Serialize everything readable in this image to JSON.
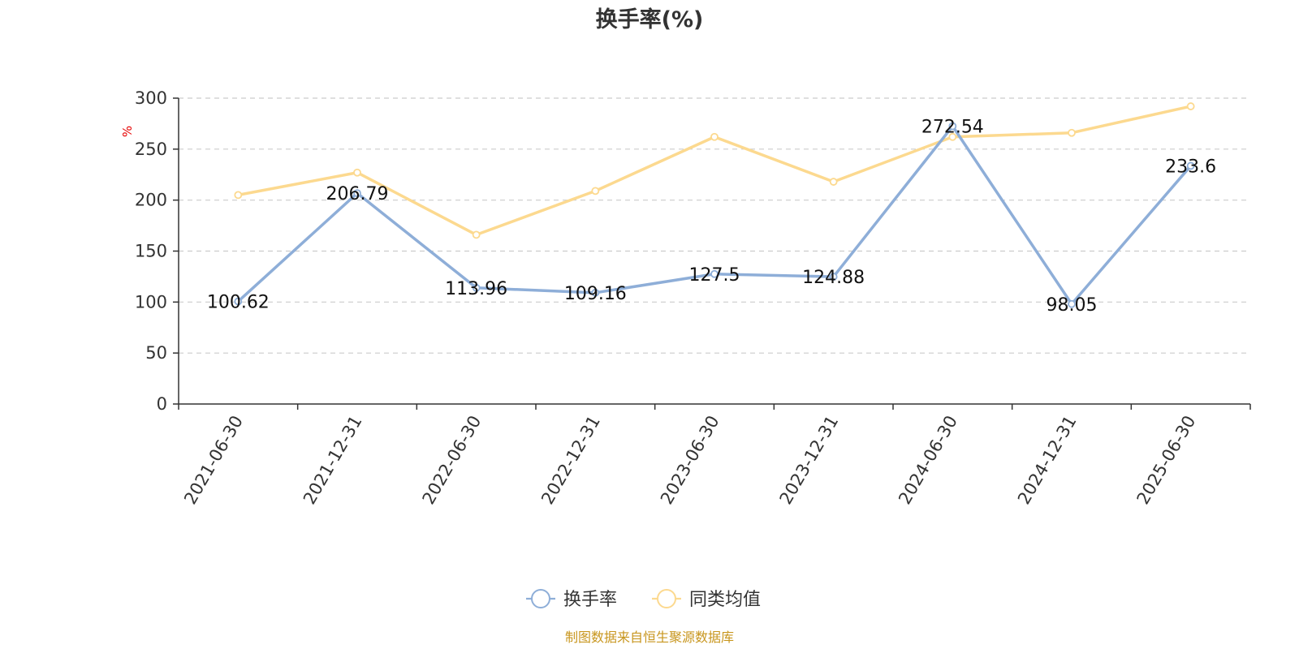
{
  "chart_data": {
    "type": "line",
    "title": "换手率(%)",
    "ylabel": "%",
    "ylim": [
      0,
      300
    ],
    "yticks": [
      0,
      50,
      100,
      150,
      200,
      250,
      300
    ],
    "grid": true,
    "legend_position": "bottom",
    "categories": [
      "2021-06-30",
      "2021-12-31",
      "2022-06-30",
      "2022-12-31",
      "2023-06-30",
      "2023-12-31",
      "2024-06-30",
      "2024-12-31",
      "2025-06-30"
    ],
    "series": [
      {
        "name": "换手率",
        "color": "#8eaed8",
        "values": [
          100.62,
          206.79,
          113.96,
          109.16,
          127.5,
          124.88,
          272.54,
          98.05,
          233.6
        ],
        "labels": [
          "100.62",
          "206.79",
          "113.96",
          "109.16",
          "127.5",
          "124.88",
          "272.54",
          "98.05",
          "233.6"
        ]
      },
      {
        "name": "同类均值",
        "color": "#fcd98f",
        "values": [
          205,
          227,
          166,
          209,
          262,
          218,
          262,
          266,
          292
        ]
      }
    ],
    "source": "制图数据来自恒生聚源数据库"
  }
}
